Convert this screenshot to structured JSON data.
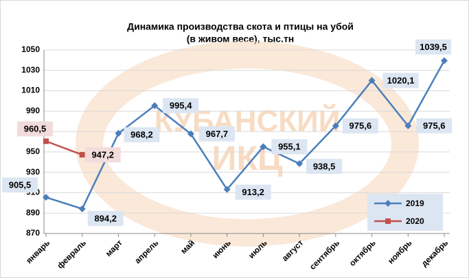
{
  "chart_data": {
    "type": "line",
    "title": "Динамика производства скота и птицы  на убой",
    "subtitle": "(в живом весе), тыс.тн",
    "watermark": [
      "КУБАНСКИЙ",
      "ИКЦ"
    ],
    "categories": [
      "январь",
      "февраль",
      "март",
      "апрель",
      "май",
      "июнь",
      "июль",
      "август",
      "сентябрь",
      "октябрь",
      "ноябрь",
      "декабрь"
    ],
    "series": [
      {
        "name": "2019",
        "color": "#4a7ebb",
        "marker": "diamond",
        "values": [
          905.5,
          894.2,
          968.2,
          995.4,
          967.7,
          913.2,
          955.1,
          938.5,
          975.6,
          1020.1,
          975.6,
          1039.5
        ],
        "value_labels": [
          "905,5",
          "894,2",
          "968,2",
          "995,4",
          "967,7",
          "913,2",
          "955,1",
          "938,5",
          "975,6",
          "1020,1",
          "975,6",
          "1039,5"
        ]
      },
      {
        "name": "2020",
        "color": "#c0504d",
        "marker": "square",
        "values": [
          960.5,
          947.2,
          null,
          null,
          null,
          null,
          null,
          null,
          null,
          null,
          null,
          null
        ],
        "value_labels": [
          "960,5",
          "947,2",
          null,
          null,
          null,
          null,
          null,
          null,
          null,
          null,
          null,
          null
        ]
      }
    ],
    "ylim": [
      870,
      1050
    ],
    "yticks": [
      870,
      890,
      910,
      930,
      950,
      970,
      990,
      1010,
      1030,
      1050
    ],
    "grid": true,
    "legend": "bottom-right"
  }
}
